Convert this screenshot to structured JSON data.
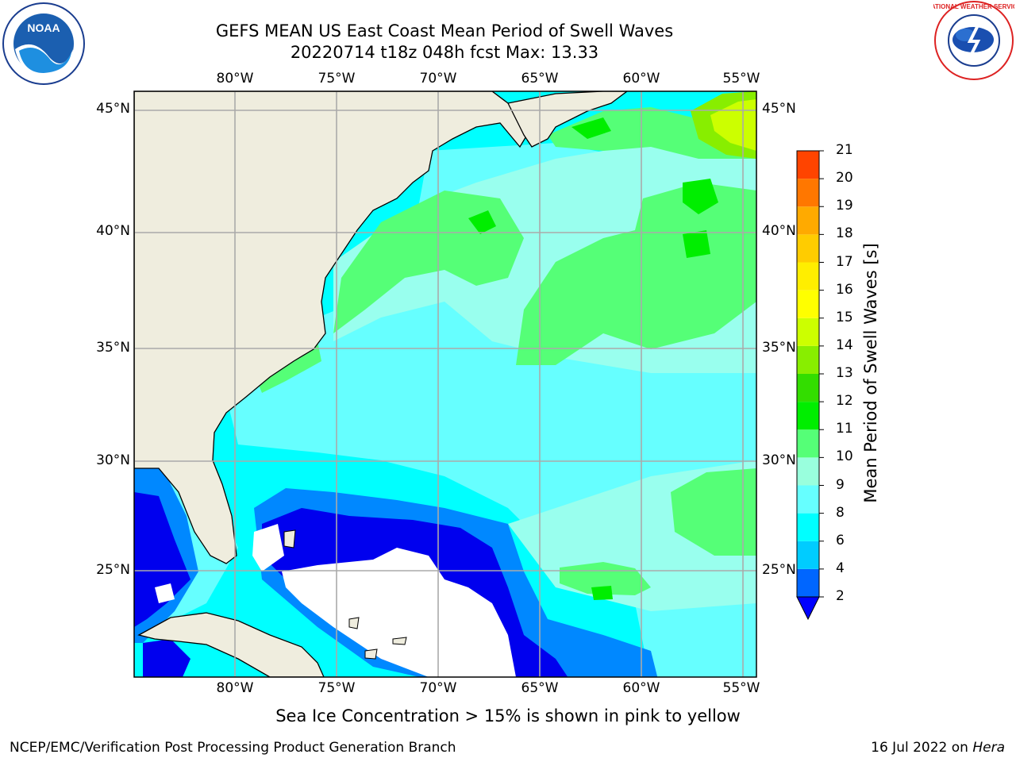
{
  "title": {
    "line1": "GEFS MEAN US East Coast Mean Period of Swell Waves",
    "line2": "20220714 t18z 048h fcst   Max: 13.33"
  },
  "map": {
    "lon_labels": [
      "80°W",
      "75°W",
      "70°W",
      "65°W",
      "60°W",
      "55°W"
    ],
    "lat_labels": [
      "45°N",
      "40°N",
      "35°N",
      "30°N",
      "25°N"
    ],
    "land_color": "#efedde",
    "ocean_base_color": "#00ffff"
  },
  "colorbar": {
    "title": "Mean Period of Swell Waves [s]",
    "labels": [
      "2",
      "4",
      "6",
      "8",
      "9",
      "10",
      "11",
      "12",
      "13",
      "14",
      "15",
      "16",
      "17",
      "18",
      "19",
      "20",
      "21"
    ],
    "colors": [
      "#0066ff",
      "#00ccff",
      "#00ffff",
      "#66ffff",
      "#99ffdd",
      "#55ff77",
      "#00ee00",
      "#33dd00",
      "#88ee00",
      "#ccff00",
      "#ffff00",
      "#ffee00",
      "#ffcc00",
      "#ffaa00",
      "#ff7700",
      "#ff4400",
      "#ff0000"
    ],
    "under_color": "#0000ff"
  },
  "note": "Sea Ice Concentration > 15% is shown in pink to yellow",
  "footer": {
    "left": "NCEP/EMC/Verification Post Processing Product Generation Branch",
    "date": "16 Jul 2022 on",
    "machine": "Hera"
  },
  "logos": {
    "noaa": "NOAA",
    "nws": "NATIONAL WEATHER SERVICE"
  }
}
